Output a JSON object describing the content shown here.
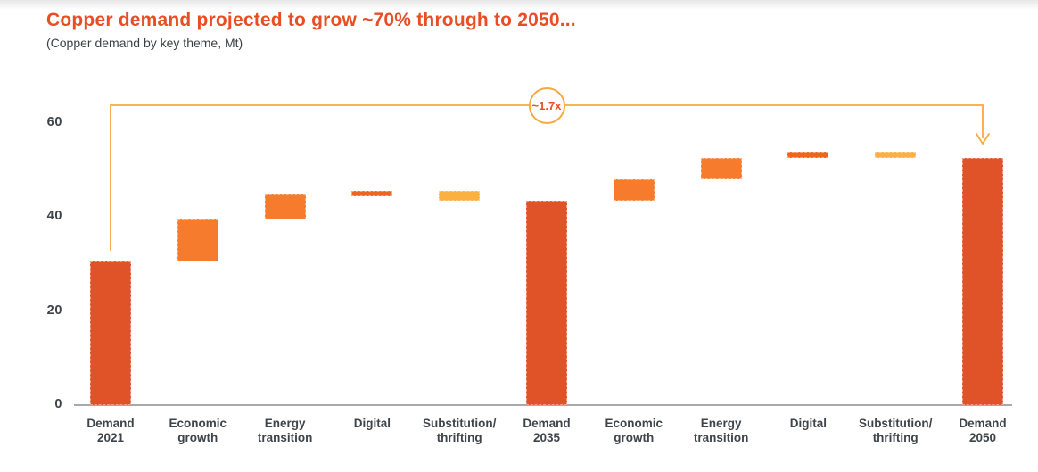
{
  "header": {
    "title": "Copper demand projected to grow ~70% through to 2050...",
    "subtitle": "(Copper demand by key theme, Mt)"
  },
  "chart_data": {
    "type": "bar",
    "subtype": "waterfall",
    "title": "Copper demand projected to grow ~70% through to 2050...",
    "subtitle": "(Copper demand by key theme, Mt)",
    "unit": "Mt",
    "ylim": [
      0,
      65
    ],
    "yticks": [
      0,
      20,
      40,
      60
    ],
    "grid": false,
    "legend": false,
    "categories": [
      "Demand 2021",
      "Economic growth",
      "Energy transition",
      "Digital",
      "Substitution/thrifting",
      "Demand 2035",
      "Economic growth",
      "Energy transition",
      "Digital",
      "Substitution/thrifting",
      "Demand 2050"
    ],
    "bars": [
      {
        "name": "demand-2021",
        "label_lines": [
          "Demand",
          "2021"
        ],
        "start": 0,
        "end": 30.5,
        "role": "total"
      },
      {
        "name": "economic-growth-2021-35",
        "label_lines": [
          "Economic",
          "growth"
        ],
        "start": 30.5,
        "end": 39.5,
        "role": "increase"
      },
      {
        "name": "energy-transition-2021-35",
        "label_lines": [
          "Energy",
          "transition"
        ],
        "start": 39.5,
        "end": 45,
        "role": "increase"
      },
      {
        "name": "digital-2021-35",
        "label_lines": [
          "Digital"
        ],
        "start": 44.5,
        "end": 45.5,
        "role": "digital"
      },
      {
        "name": "substitution-thrifting-2021-35",
        "label_lines": [
          "Substitution/",
          "thrifting"
        ],
        "start": 43.5,
        "end": 45.5,
        "role": "decrease"
      },
      {
        "name": "demand-2035",
        "label_lines": [
          "Demand",
          "2035"
        ],
        "start": 0,
        "end": 43.5,
        "role": "total"
      },
      {
        "name": "economic-growth-2035-50",
        "label_lines": [
          "Economic",
          "growth"
        ],
        "start": 43.5,
        "end": 48,
        "role": "increase"
      },
      {
        "name": "energy-transition-2035-50",
        "label_lines": [
          "Energy",
          "transition"
        ],
        "start": 48,
        "end": 52.5,
        "role": "increase"
      },
      {
        "name": "digital-2035-50",
        "label_lines": [
          "Digital"
        ],
        "start": 52.5,
        "end": 54,
        "role": "digital"
      },
      {
        "name": "substitution-thrifting-2035-50",
        "label_lines": [
          "Substitution/",
          "thrifting"
        ],
        "start": 52.5,
        "end": 54,
        "role": "decrease"
      },
      {
        "name": "demand-2050",
        "label_lines": [
          "Demand",
          "2050"
        ],
        "start": 0,
        "end": 52.5,
        "role": "total"
      }
    ],
    "annotation": {
      "label": "~1.7x",
      "from_category": "Demand 2021",
      "to_category": "Demand 2050",
      "arrow": "down"
    },
    "colors": {
      "total": "#E05329",
      "increase": "#F67B2D",
      "digital": "#F0641F",
      "decrease": "#FBB042",
      "bracket": "#F8A93B",
      "badge_text": "#E8502A",
      "title": "#E84E25",
      "subtitle_text": "#3B3F43",
      "axis_line": "#A9A9A9",
      "tick_text": "#3E4449",
      "label_text": "#3E4449"
    }
  }
}
